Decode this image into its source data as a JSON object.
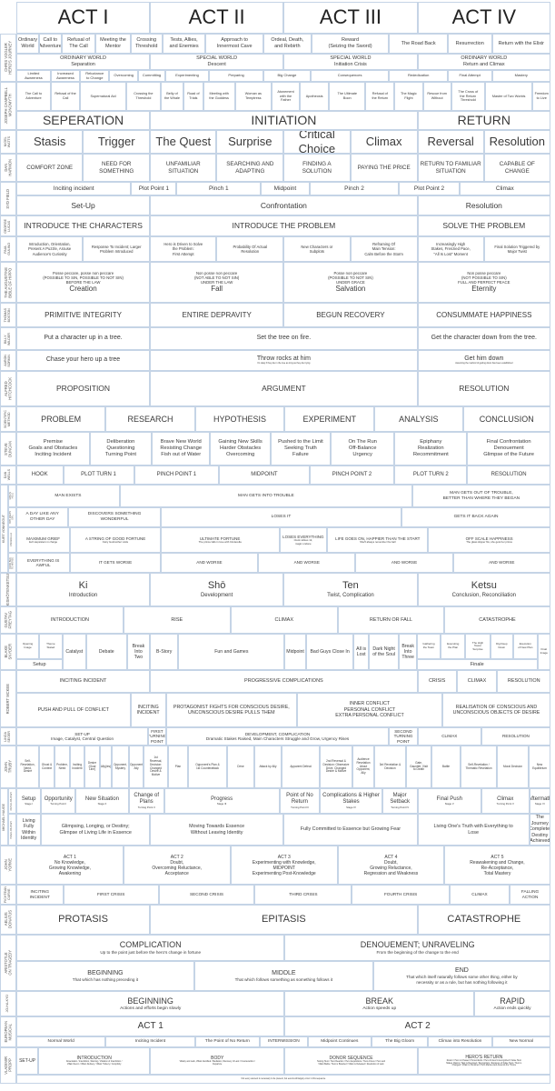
{
  "header": {
    "acts": [
      "ACT I",
      "ACT II",
      "ACT III",
      "ACT IV"
    ]
  },
  "frameworks": [
    {
      "label": "CHRIS VOGLER\nHERO'S JOURNEY",
      "rows": [
        {
          "cells": [
            "Ordinary\nWorld",
            "Call to\nAdventure",
            "Refusal of\nThe Call",
            "Meeting the\nMentor",
            "Crossing\nThreshold",
            "Tests, Allies,\nand Enemies",
            "Approach to\nInnermost Cave",
            "Ordeal, Death,\nand Rebirth",
            "Reward\n(Seizing the Sword)",
            "The Road Back",
            "Resurrection",
            "Return with the Elixir"
          ]
        },
        {
          "cells": [
            "ORDINARY WORLD\nSeparation",
            "SPECIAL WORLD\nDescent",
            "SPECIAL WORLD\nInitiation Crisis",
            "ORDINARY WORLD\nReturn and Climax"
          ]
        },
        {
          "cells": [
            "Limited\nAwareness",
            "Increased\nAwareness",
            "Reluctance\nto Change",
            "Overcoming",
            "Committing",
            "Experimenting",
            "Preparing",
            "Big Change",
            "Consequences",
            "Rededication",
            "Final Attempt",
            "Mastery"
          ]
        }
      ]
    },
    {
      "label": "JOSEPH CAMPBELL\nMONOMYTH",
      "rows": [
        {
          "cells": [
            "The Call to\nAdventure",
            "Refusal of the\nCall",
            "Supernatural Aid",
            "Crossing the\nThreshold",
            "Belly of\nthe Whale",
            "Road of\nTrials",
            "Meeting with\nthe Goddess",
            "Woman as\nTemptress",
            "Atonement\nwith the\nFather",
            "Apotheosis",
            "The Ultimate\nBoon",
            "Refusal of\nthe Return",
            "The Magic\nFlight",
            "Rescue from\nWithout",
            "The Cross of\nthe Return\nThreshold",
            "Master of Two Worlds",
            "Freedom\nto Live"
          ]
        },
        {
          "cells": [
            "SEPERATION",
            "INITIATION",
            "RETURN"
          ]
        }
      ]
    },
    {
      "label": "NIGEL\nWATTS",
      "rows": [
        {
          "cells": [
            "Stasis",
            "Trigger",
            "The Quest",
            "Surprise",
            "Critical Choice",
            "Climax",
            "Reversal",
            "Resolution"
          ]
        }
      ]
    },
    {
      "label": "DAN\nHARMON",
      "rows": [
        {
          "cells": [
            "COMFORT ZONE",
            "NEED FOR\nSOMETHING",
            "UNFAMILIAR\nSITUATION",
            "SEARCHING AND\nADAPTING",
            "FINDING A\nSOLUTION",
            "PAYING THE PRICE",
            "RETURN TO FAMILIAR\nSITUATION",
            "CAPABLE OF\nCHANGE"
          ]
        }
      ]
    },
    {
      "label": "SYD FIELD",
      "rows": [
        {
          "cells": [
            "Inciting incident",
            "Plot Point 1",
            "Pinch 1",
            "Midpoint",
            "Pinch 2",
            "Plot Point 2",
            "Climax"
          ]
        },
        {
          "cells": [
            "Set-Up",
            "Confrontation",
            "Resolution"
          ]
        }
      ]
    },
    {
      "label": "GEORGE\nLUCAS",
      "rows": [
        {
          "cells": [
            "INTRODUCE THE CHARACTERS",
            "INTRODUCE THE PROBLEM",
            "SOLVE THE PROBLEM"
          ]
        }
      ]
    },
    {
      "label": "PAUL\nGULINO",
      "rows": [
        {
          "cells": [
            "Introduction, Orientation,\nPresent A Puzzle, Arouse\nAudience's Curiosity",
            "Response To Incident; Larger\nProblem Introduced",
            "Hero is Driven to Solve\nthe Problem:\nFirst Attempt",
            "Probability Of Actual\nResolution",
            "New Characters or\nSubplots",
            "Reframing Of\nMain Tension:\nCalm Before the Storm",
            "Increasingly High\nStakes, Frenzied Pace,\n\"All Is Lost\" Moment",
            "Final Solution Triggered by\nMajor Twist"
          ]
        }
      ]
    },
    {
      "label": "THE AUGUSTINE\nBIBLE OF HIPPO",
      "rows": [
        {
          "cells": [
            {
              "a": "Posse peccare, posse non peccare\n(POSSIBLE TO SIN, POSSIBLE TO NOT SIN)\nBEFORE THE LAW",
              "t": "Creation"
            },
            {
              "a": "Non posse non peccare\n(NOT ABLE TO NOT SIN)\nUNDER THE LAW",
              "t": "Fall"
            },
            {
              "a": "Posse non peccare\n(POSSIBLE TO NOT SIN)\nUNDER GRACE",
              "t": "Salvation"
            },
            {
              "a": "Non posse peccare\n(NOT POSSIBLE TO SIN)\nFULL AND PERFECT PEACE",
              "t": "Eternity"
            }
          ]
        }
      ]
    },
    {
      "label": "THOMAS\nBOSTON",
      "rows": [
        {
          "cells": [
            "PRIMITIVE INTEGRITY",
            "ENTIRE DEPRAVITY",
            "BEGUN RECOVERY",
            "CONSUMMATE HAPPINESS"
          ]
        }
      ]
    },
    {
      "label": "BILLY\nWILDER",
      "rows": [
        {
          "cells": [
            "Put a character up in a tree.",
            "Set the tree on fire.",
            "Get the character down from the tree."
          ]
        }
      ]
    },
    {
      "label": "AARON\nSORKIN",
      "rows": [
        {
          "cells": [
            {
              "t": "Chase your hero up a tree"
            },
            {
              "t": "Throw rocks at him",
              "s": "It's okay if they die in the tree as long as they die trying"
            },
            {
              "t": "Get him down",
              "s": "Assuming the method of getting down has been established"
            }
          ]
        }
      ]
    },
    {
      "label": "ALFRED\nHITCHCOCK",
      "rows": [
        {
          "cells": [
            "PROPOSITION",
            "ARGUMENT",
            "RESOLUTION"
          ]
        }
      ]
    },
    {
      "label": "SCIENTIFIC\nMETHOD",
      "rows": [
        {
          "cells": [
            "PROBLEM",
            "RESEARCH",
            "HYPOTHESIS",
            "EXPERIMENT",
            "ANALYSIS",
            "CONCLUSION"
          ]
        }
      ]
    },
    {
      "label": "STEVE\nDUNCAN",
      "rows": [
        {
          "cells": [
            "Premise\nGoals and Obstacles\nInciting Incident",
            "Deliberation\nQuestioning\nTurning Point",
            "Brave New World\nResisting Change\nFish out of Water",
            "Gaining New Skills\nHarder Obstacles\nOvercoming",
            "Pushed to the Limit\nSeeking Truth\nFailure",
            "On The Run\nOff-Balance\nUrgency",
            "Epiphany\nRealization\nRecommitment",
            "Final Confrontation\nDenouement\nGlimpse of the Future"
          ]
        }
      ]
    },
    {
      "label": "DAN\nWELLS",
      "rows": [
        {
          "cells": [
            "HOOK",
            "PLOT TURN 1",
            "PINCH POINT 1",
            "MIDPOINT",
            "PINCH POINT 2",
            "PLOT TURN 2",
            "RESOLUTION"
          ]
        }
      ]
    },
    {
      "label": "KURT VONNEGUT",
      "sublabels": [
        "MAN IN\nHOLE",
        "BOY MEETS\nGIRL",
        "CINDERELLA",
        "FROM BAD\nTO WORSE"
      ],
      "rows": [
        {
          "cells": [
            "MAN EXISTS",
            "MAN GETS INTO TROUBLE",
            "MAN GETS OUT OF TROUBLE,\nBETTER THAN WHERE THEY BEGAN"
          ]
        },
        {
          "cells": [
            "A DAY LIKE ANY\nOTHER DAY",
            "DISCOVERS SOMETHING\nWONDERFUL",
            "LOSES IT",
            "GETS IT BACK AGAIN"
          ]
        },
        {
          "cells": [
            {
              "t": "MAXIMUM GRIEF",
              "s": "Evil stepsisters in charge"
            },
            {
              "t": "A STRING OF GOOD FORTUNE",
              "s": "Fairy Godmother visits"
            },
            {
              "t": "ULTIMATE FORTUNE",
              "s": "The prince falls in love with Cinderella"
            },
            {
              "t": "LOSES EVERYTHING",
              "s": "Clock strikes 12,\nmagic undone"
            },
            {
              "t": "LIFE GOES ON, HAPPIER THAN THE START",
              "s": "She'll always remember the ball"
            },
            {
              "t": "OFF SCALE HAPPINESS",
              "s": "The glass slipper fits, she gets her prince"
            }
          ]
        },
        {
          "cells": [
            "EVERYTHING IS\nAWFUL",
            "IT GETS WORSE",
            "AND WORSE",
            "AND WORSE",
            "AND WORSE",
            "AND WORSE"
          ]
        }
      ]
    },
    {
      "label": "KISHŌTENKETSU",
      "rows": [
        {
          "cells": [
            {
              "t": "Ki",
              "s": "Introduction"
            },
            {
              "t": "Shō",
              "s": "Development"
            },
            {
              "t": "Ten",
              "s": "Twist, Complication"
            },
            {
              "t": "Ketsu",
              "s": "Conclusion, Reconciliation"
            }
          ]
        }
      ]
    },
    {
      "label": "GUSTAV\nFREYTAG",
      "rows": [
        {
          "cells": [
            "INTRODUCTION",
            "RISE",
            "CLIMAX",
            "RETURN OR FALL",
            "CATASTROPHE"
          ]
        }
      ]
    },
    {
      "label": "BLAKE\nSNYDER",
      "rows": [
        {
          "cells": [
            "Opening\nImage",
            "Theme\nStated",
            "Catalyst",
            "Debate",
            "Break\nInto\nTwo",
            "B-Story",
            "Fun and Games",
            "Midpoint",
            "Bad Guys Close In",
            "All is\nLost",
            "Dark Night\nof the Soul",
            "Break\nInto\nThree",
            "Gathering\nthe Team",
            "Executing\nthe Plan",
            "The High\nTower\nSurprise",
            "Dig Deep\nDown",
            "Execution\nof New Plan",
            "Final\nImage"
          ]
        },
        {
          "cells": [
            "Setup",
            "Finale"
          ]
        }
      ]
    },
    {
      "label": "ROBERT MCKEE",
      "rows": [
        {
          "cells": [
            "INCITING INCIDENT",
            "PROGRESSIVE COMPLICATIONS",
            "CRISIS",
            "CLIMAX",
            "RESOLUTION"
          ]
        },
        {
          "cells": [
            "PUSH AND PULL OF CONFLICT",
            "INCITING\nINCIDENT",
            "PROTAGONIST FIGHTS FOR CONSCIOUS DESIRE,\nUNCONSCIOUS DESIRE PULLS THEM",
            "INNER CONFLICT\nPERSONAL CONFLICT\nEXTRA PERSONAL CONFLICT",
            "REALISATION OF CONSCIOUS AND\nUNCONSCIOUS OBJECTS OF DESIRE"
          ]
        }
      ]
    },
    {
      "label": "LINDA\nSEGER",
      "rows": [
        {
          "cells": [
            "SET-UP\nImage, Catalyst, Central Question",
            "FIRST\nTURNING\nPOINT",
            "DEVELOPMENT, COMPLICATION\nDramatic Stakes Raised, Main Characters Struggle and Grow, Urgency Rises",
            "SECOND\nTURNING\nPOINT",
            "CLIMAX",
            "RESOLUTION"
          ]
        }
      ]
    },
    {
      "label": "JOHN\nTRUBY",
      "rows": [
        {
          "cells": [
            "Self-\nRevelation,\nNeed,\nDesire",
            "Ghost &\nContext",
            "Problem,\nNeed",
            "Inciting\nIncident",
            "Desire\n(Goal\nLine)",
            "Ally(ies)",
            "Opponent,\nMystery",
            "Opponent\nAlly",
            "1st\nReversal,\nDecision:\nChanged\nDesire &\nMotive",
            "Plan",
            "Opponent's Plan &\n1st Counterattack",
            "Drive",
            "Attack by Ally",
            "Apparent Defeat",
            "2nd Reversal &\nDecision: Obsessive\nDrive, Changed\nDesire & Motive",
            "Audience\nRevelation\nAbout\nOpponent,\nAlly",
            "3rd Revelation &\nDecision",
            "Gate,\nGauntlet, Visit\nto Death",
            "Battle",
            "Self-Revelation /\nThematic Revelation",
            "Moral Decision",
            "New\nEquilibrium"
          ]
        }
      ]
    },
    {
      "label": "MICHAEL HAUGE",
      "sublabels": [
        "OUTER JOURNEY",
        "INNER JOURNEY"
      ],
      "rows": [
        {
          "cells": [
            {
              "t": "Setup",
              "s": "Stage I"
            },
            {
              "t": "Opportunity",
              "s": "Turning Point I"
            },
            {
              "t": "New Situation",
              "s": "Stage II"
            },
            {
              "t": "Change of\nPlans",
              "s": "Turning Point II"
            },
            {
              "t": "Progress",
              "s": "Stage III"
            },
            {
              "t": "Point of No\nReturn",
              "s": "Turning Point III"
            },
            {
              "t": "Complications & Higher Stakes",
              "s": "Stage IV"
            },
            {
              "t": "Major\nSetback",
              "s": "Turning Point IV"
            },
            {
              "t": "Final Push",
              "s": "Stage V"
            },
            {
              "t": "Climax",
              "s": "Turning Point V"
            },
            {
              "t": "Aftermath",
              "s": "Stage VI"
            }
          ]
        },
        {
          "cells": [
            "Living\nFully\nWithin\nIdentity",
            "Glimpsing, Longing, or Destiny;\nGlimpse of Living Life in Essence",
            "Moving Towards Essence\nWithout Leaving Identity",
            "Fully Committed to Essence but Growing Fear",
            "Living One's Truth with Everything to\nLose",
            "The Journey\nComplete,\nDestiny\nAchieved"
          ]
        }
      ]
    },
    {
      "label": "JOHN\nYORKE",
      "rows": [
        {
          "cells": [
            "ACT 1\nNo Knowledge,\nGrowing Knowledge,\nAwakening",
            "ACT 2\nDoubt,\nOvercoming Reluctance,\nAcceptance",
            "ACT 3\nExperimenting with Knowledge,\nMIDPOINT\nExperimenting Post-Knowledge",
            "ACT 4\nDoubt,\nGrowing Reluctance,\nRegression and Weakness",
            "ACT 5\nReawakening and Change,\nRe-Acceptance,\nTotal Mastery"
          ]
        }
      ]
    },
    {
      "label": "FICHTEAN\nCURVE",
      "rows": [
        {
          "cells": [
            "INCITING\nINCIDENT",
            "FIRST CRISIS",
            "SECOND CRISIS",
            "THIRD CRISIS",
            "FOURTH CRISIS",
            "CLIMAX",
            "FALLING\nACTION"
          ]
        }
      ]
    },
    {
      "label": "AELIUS\nDONATUS",
      "rows": [
        {
          "cells": [
            "PROTASIS",
            "EPITASIS",
            "CATASTROPHE"
          ]
        }
      ]
    },
    {
      "label": "ARISTOTLE\nON TRAGEDY",
      "rows": [
        {
          "cells": [
            {
              "t": "COMPLICATION",
              "s": "Up to the point just before the hero's change in fortune"
            },
            {
              "t": "DENOUEMENT; UNRAVELING",
              "s": "From the beginning of the change to the end"
            }
          ]
        },
        {
          "cells": [
            {
              "t": "BEGINNING",
              "s": "That which has nothing preceding it"
            },
            {
              "t": "MIDDLE",
              "s": "That which follows something as something follows it"
            },
            {
              "t": "END",
              "s": "That which itself naturally follows some other thing, either by\nnecessity or as a rule, but has nothing following it"
            }
          ]
        }
      ]
    },
    {
      "label": "JO-HA-KYŪ",
      "rows": [
        {
          "cells": [
            {
              "t": "BEGINNING",
              "s": "Actions and efforts begin slowly"
            },
            {
              "t": "BREAK",
              "s": "Action speeds up"
            },
            {
              "t": "RAPID",
              "s": "Action ends quickly"
            }
          ]
        }
      ]
    },
    {
      "label": "EUROPEAN\nMUSICAL",
      "rows": [
        {
          "cells": [
            "ACT 1",
            "ACT 2"
          ]
        },
        {
          "cells": [
            "Normal World",
            "Inciting Incident",
            "The Point of No Return",
            "INTERMISSION",
            "Midpoint Continues",
            "The Big Gloom",
            "Climax into Resolution",
            "New Normal"
          ]
        }
      ]
    },
    {
      "label": "VLADIMIR\nPROPP",
      "rows": [
        {
          "cells": [
            {
              "t": "SET-UP"
            },
            {
              "t": "INTRODUCTION",
              "s": "Absentation / Interdiction, Warning / Violation of Interdiction /\nVillain Recon / Villain Delivery / Villain Trickery / Complicity"
            },
            {
              "t": "BODY",
              "s": "Villainy and Lack, Villain Identified / Mediation, Discovery of Lack / Counteraction /\nDeparture"
            },
            {
              "t": "DONOR SEQUENCE",
              "s": "Testing Hero / Hero Reaction / Hero Acquisitions / Hero Arrives / Hero and\nVillain Battle / Hero is Branded / Villain is Defeated / Resolution of Lack"
            },
            {
              "t": "HERO'S RETURN",
              "s": "Return / Hero is Chased / Pursuit Ends / Hero Arrives Unrecognized / False Hero\nMakes Claims / Task is Resolved / Recognition / Exposure of False Hero / Hero is\nChanged / Villain is Punished / Hero Marries and Ascends the Throne"
            }
          ]
        },
        {
          "cells": [
            "Not every element is necessary to be present, but events will largely occur in this sequence"
          ]
        }
      ]
    }
  ]
}
